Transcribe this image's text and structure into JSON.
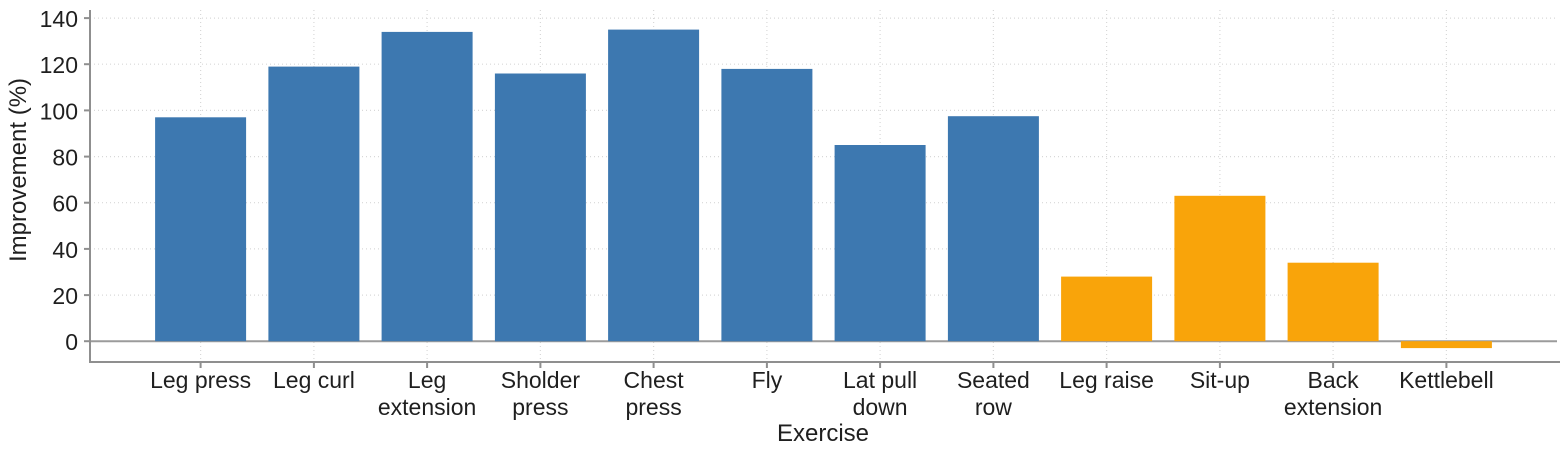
{
  "chart_data": {
    "type": "bar",
    "title": "",
    "xlabel": "Exercise",
    "ylabel": "Improvement (%)",
    "categories": [
      "Leg press",
      "Leg curl",
      "Leg extension",
      "Sholder press",
      "Chest press",
      "Fly",
      "Lat pull down",
      "Seated row",
      "Leg raise",
      "Sit-up",
      "Back extension",
      "Kettlebell"
    ],
    "category_label_lines": [
      [
        "Leg press"
      ],
      [
        "Leg curl"
      ],
      [
        "Leg",
        "extension"
      ],
      [
        "Sholder",
        "press"
      ],
      [
        "Chest",
        "press"
      ],
      [
        "Fly"
      ],
      [
        "Lat pull",
        "down"
      ],
      [
        "Seated",
        "row"
      ],
      [
        "Leg raise"
      ],
      [
        "Sit-up"
      ],
      [
        "Back",
        "extension"
      ],
      [
        "Kettlebell"
      ]
    ],
    "values": [
      97,
      119,
      134,
      116,
      135,
      118,
      85,
      97.5,
      28,
      63,
      34,
      -3
    ],
    "color_groups": [
      "blue",
      "blue",
      "blue",
      "blue",
      "blue",
      "blue",
      "blue",
      "blue",
      "orange",
      "orange",
      "orange",
      "orange"
    ],
    "colors": {
      "blue": "#3d78b0",
      "orange": "#f9a40a"
    },
    "yticks": [
      0,
      20,
      40,
      60,
      80,
      100,
      120,
      140
    ],
    "ylim": [
      -9,
      143.5
    ],
    "grid": true,
    "legend": "none",
    "axis_colors": {
      "gridline": "#d8d8d8",
      "zeroline": "#9b9b9b",
      "spine": "#8f8f8f",
      "tick": "#8f8f8f",
      "text": "#1f1f1f"
    }
  }
}
